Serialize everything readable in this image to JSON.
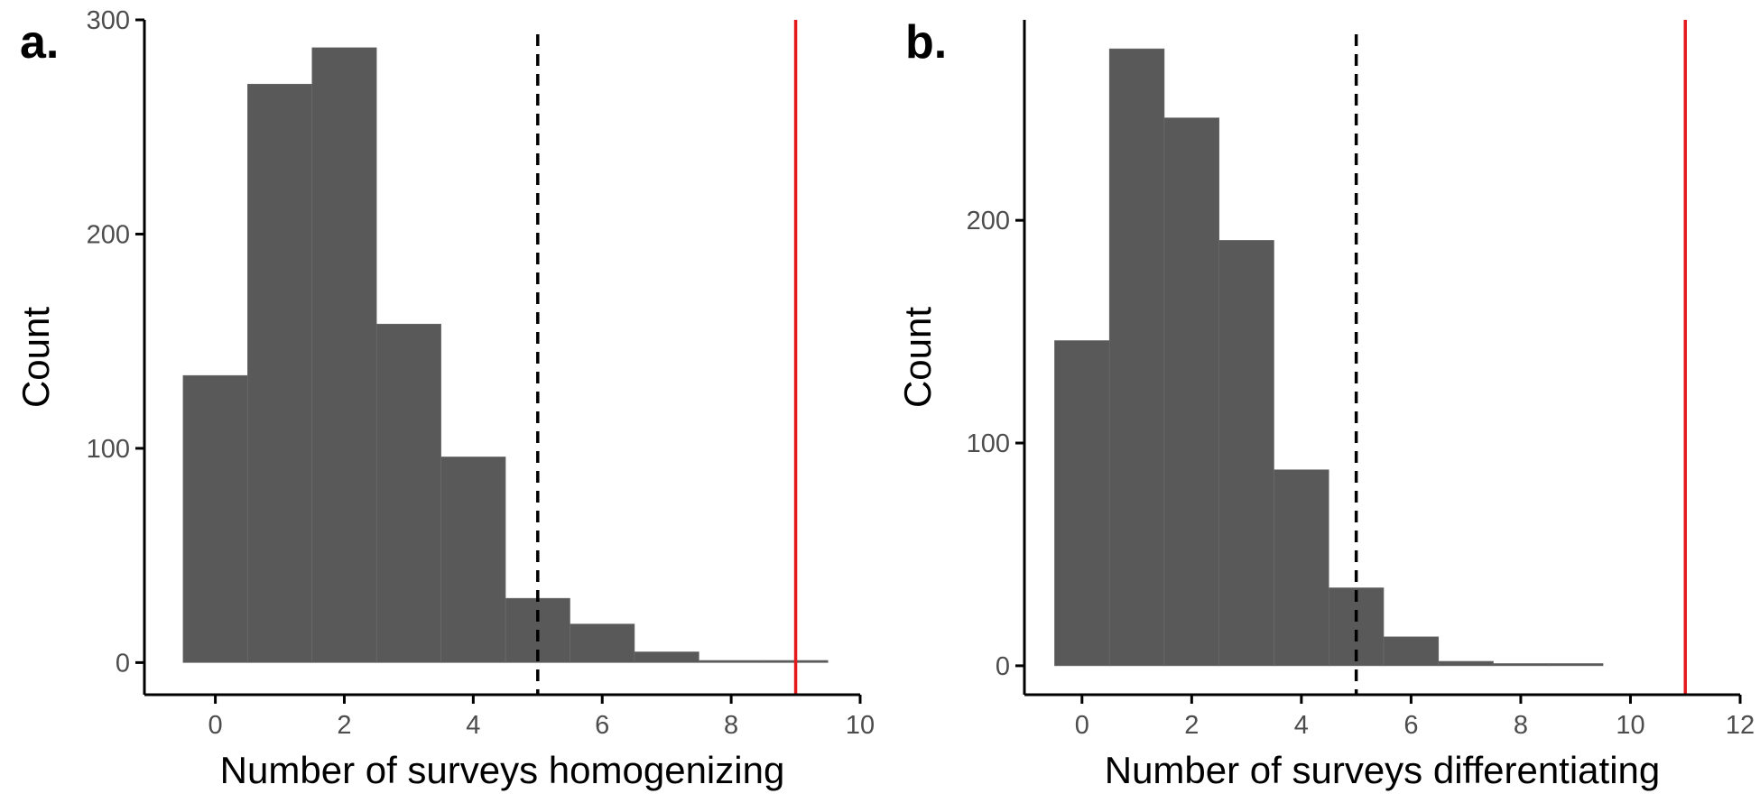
{
  "colors": {
    "bar": "#595959",
    "bar_edge": "#6e6e6e",
    "axis": "#000000",
    "tick_text": "#4d4d4d",
    "dashed_line": "#000000",
    "observed_line": "#e41a1c"
  },
  "chart_data": [
    {
      "type": "bar",
      "panel_label": "a.",
      "xlabel": "Number of surveys homogenizing",
      "ylabel": "Count",
      "xlim": [
        -1.1,
        10
      ],
      "ylim": [
        -15,
        300
      ],
      "xticks": [
        0,
        2,
        4,
        6,
        8,
        10
      ],
      "yticks": [
        0,
        100,
        200,
        300
      ],
      "ytick_labels_all": true,
      "bin_width": 1,
      "x": [
        0,
        1,
        2,
        3,
        4,
        5,
        6,
        7,
        8,
        9
      ],
      "values": [
        134,
        270,
        287,
        158,
        96,
        30,
        18,
        5,
        1,
        1
      ],
      "dashed_line_x": 5,
      "observed_line_x": 9
    },
    {
      "type": "bar",
      "panel_label": "b.",
      "xlabel": "Number of surveys differentiating",
      "ylabel": "Count",
      "xlim": [
        -1.05,
        12
      ],
      "ylim": [
        -13,
        290
      ],
      "xticks": [
        0,
        2,
        4,
        6,
        8,
        10,
        12
      ],
      "yticks": [
        0,
        100,
        200
      ],
      "bin_width": 1,
      "x": [
        0,
        1,
        2,
        3,
        4,
        5,
        6,
        7,
        8,
        9
      ],
      "values": [
        146,
        277,
        246,
        191,
        88,
        35,
        13,
        2,
        1,
        1
      ],
      "dashed_line_x": 5,
      "observed_line_x": 11
    }
  ]
}
